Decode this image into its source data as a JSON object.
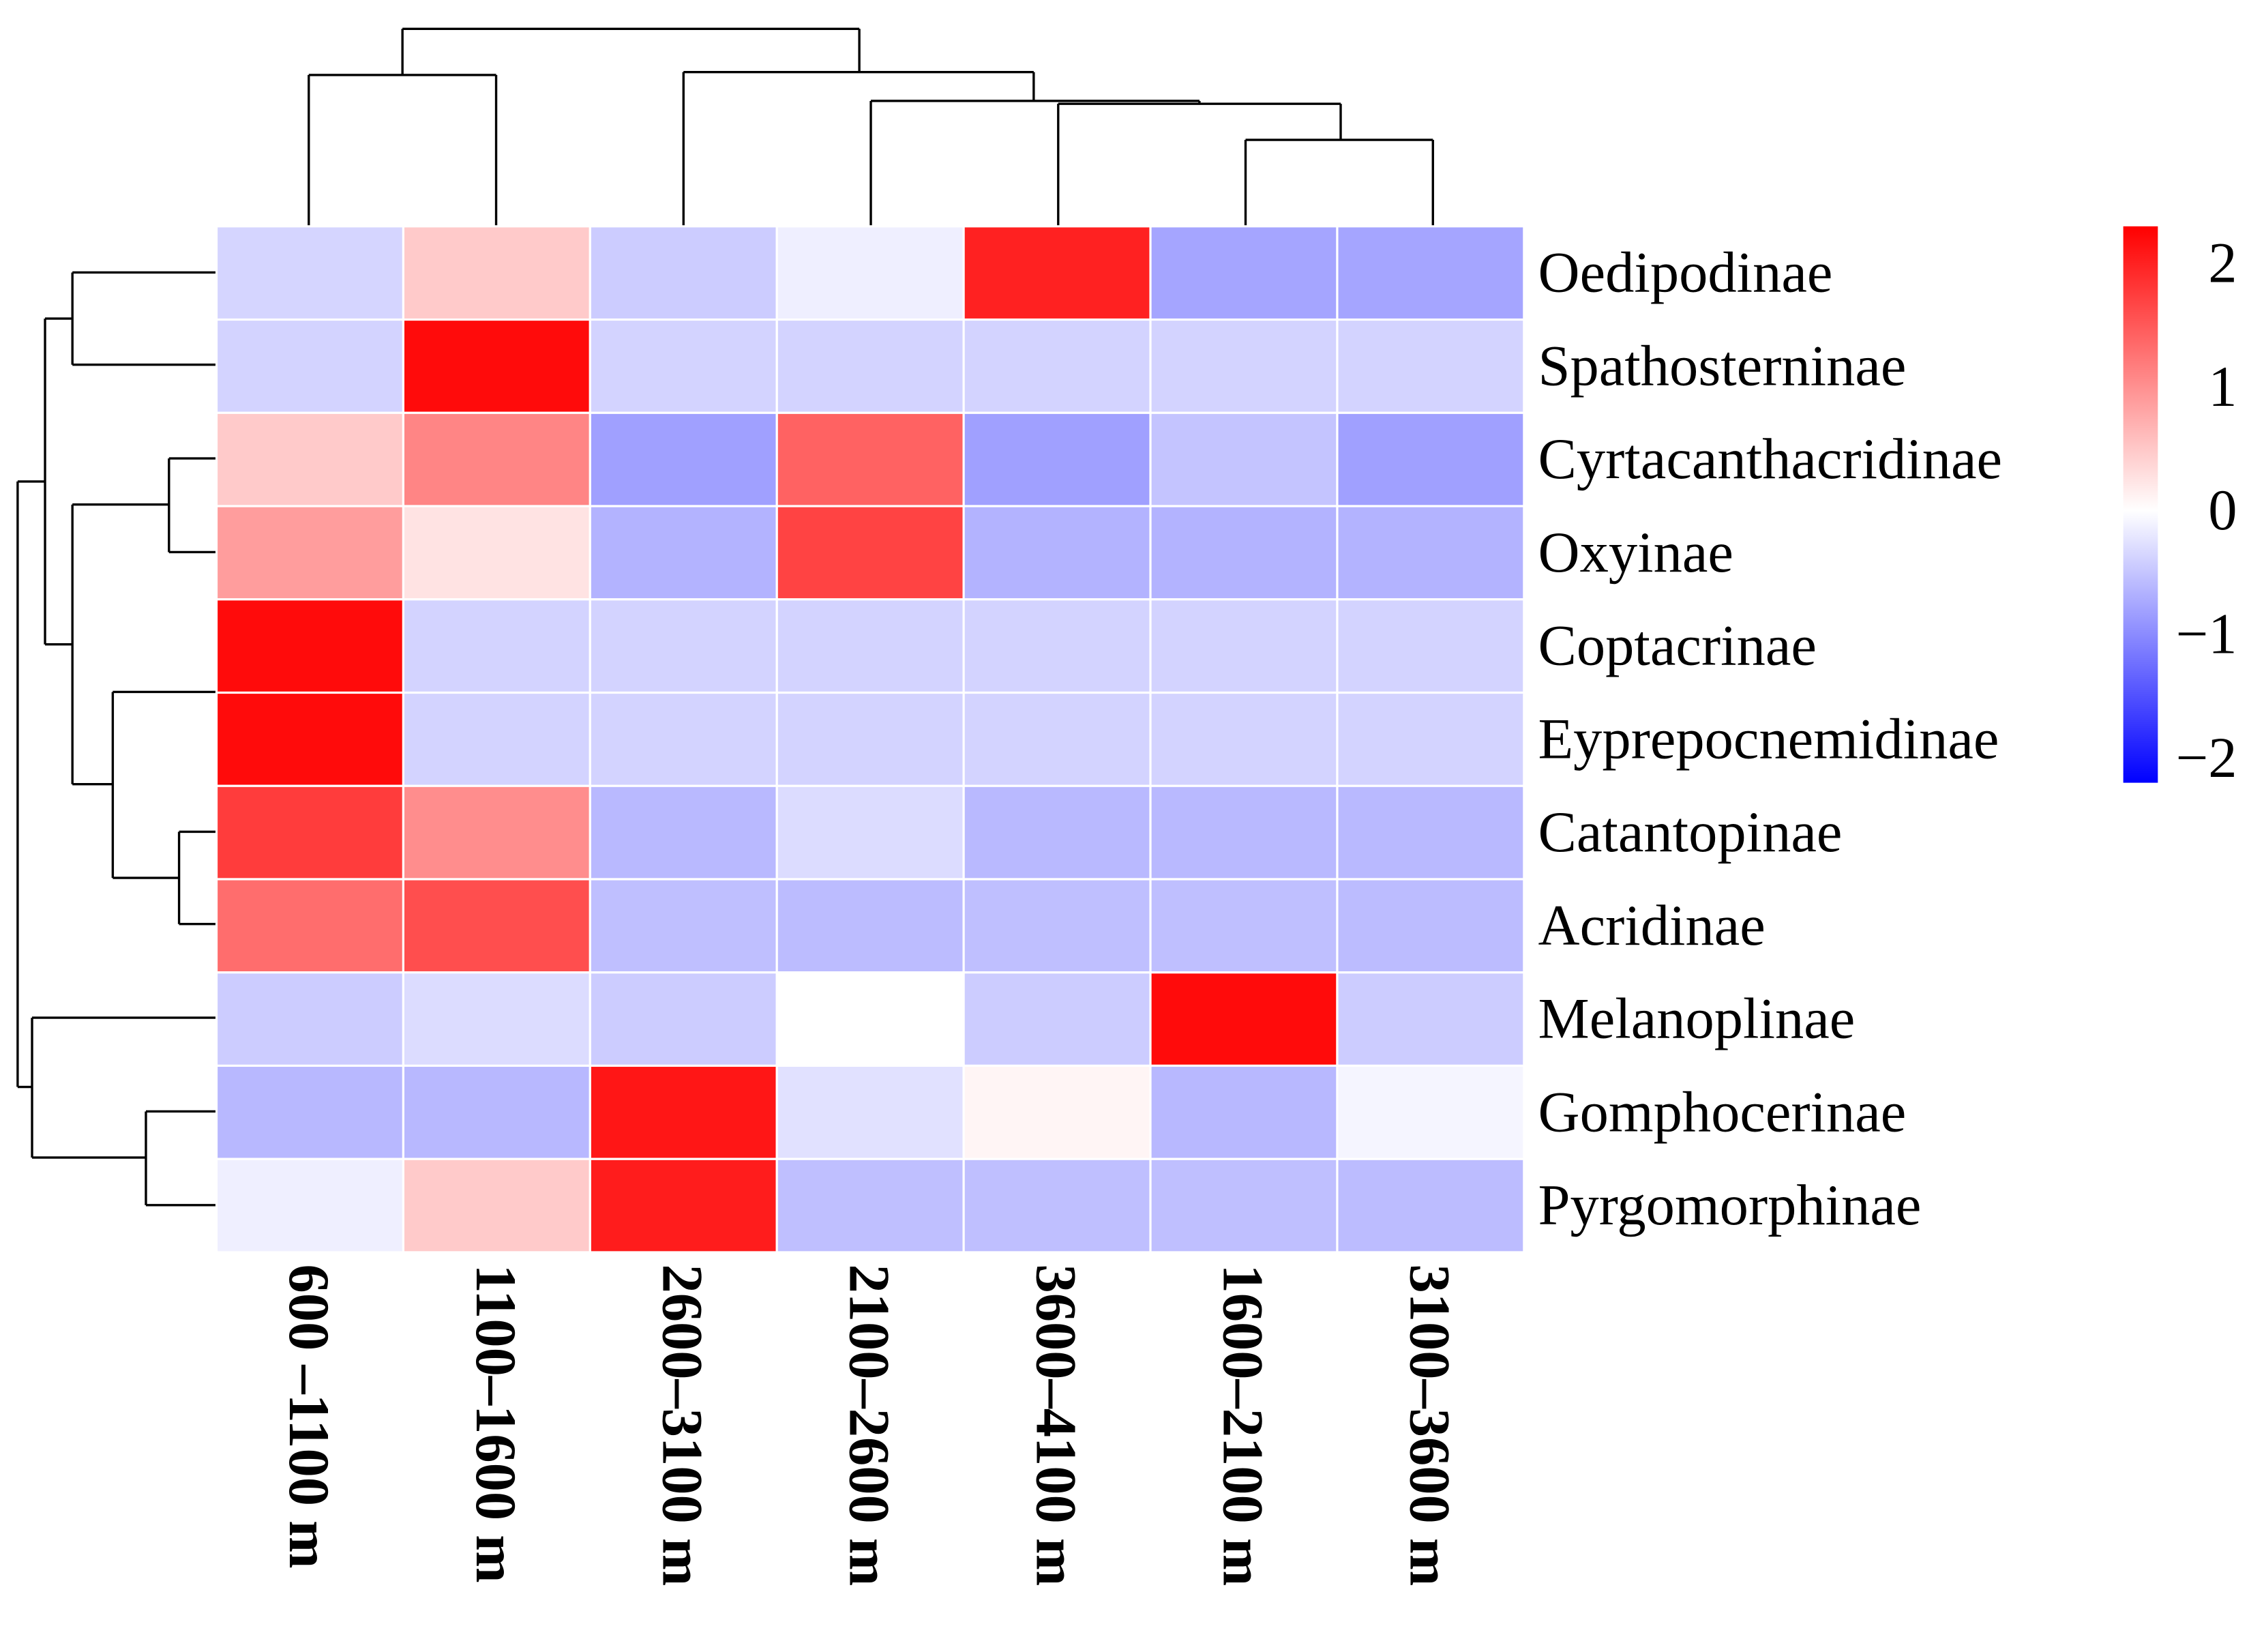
{
  "chart_data": {
    "type": "heatmap",
    "title": "",
    "columns": [
      "600 –1100 m",
      "1100–1600 m",
      "2600–3100 m",
      "2100–2600 m",
      "3600–4100 m",
      "1600–2100 m",
      "3100–3600 m"
    ],
    "rows": [
      "Oedipodinae",
      "Spathosterninae",
      "Cyrtacanthacridinae",
      "Oxyinae",
      "Coptacrinae",
      "Eyprepocnemidinae",
      "Catantopinae",
      "Acridinae",
      "Melanoplinae",
      "Gomphocerinae",
      "Pyrgomorphinae"
    ],
    "values": [
      [
        -0.36,
        0.48,
        -0.44,
        -0.14,
        2.0,
        -0.78,
        -0.78
      ],
      [
        -0.38,
        2.2,
        -0.38,
        -0.38,
        -0.38,
        -0.38,
        -0.38
      ],
      [
        0.48,
        1.1,
        -0.82,
        1.42,
        -0.82,
        -0.51,
        -0.82
      ],
      [
        0.88,
        0.25,
        -0.66,
        1.7,
        -0.66,
        -0.66,
        -0.66
      ],
      [
        2.2,
        -0.38,
        -0.38,
        -0.38,
        -0.38,
        -0.38,
        -0.38
      ],
      [
        2.2,
        -0.38,
        -0.38,
        -0.38,
        -0.38,
        -0.38,
        -0.38
      ],
      [
        1.76,
        1.03,
        -0.6,
        -0.3,
        -0.6,
        -0.6,
        -0.6
      ],
      [
        1.32,
        1.6,
        -0.55,
        -0.58,
        -0.55,
        -0.55,
        -0.58
      ],
      [
        -0.44,
        -0.3,
        -0.44,
        0.0,
        -0.44,
        2.2,
        -0.44
      ],
      [
        -0.61,
        -0.61,
        2.1,
        -0.26,
        0.09,
        -0.61,
        -0.09
      ],
      [
        -0.14,
        0.48,
        2.05,
        -0.55,
        -0.55,
        -0.55,
        -0.58
      ]
    ],
    "colorbar": {
      "range": [
        -2.2,
        2.3
      ],
      "ticks": [
        2,
        1,
        0,
        -1,
        -2
      ],
      "tick_labels": [
        "2",
        "1",
        "0",
        "−1",
        "−2"
      ],
      "colors": {
        "high": "#ff0000",
        "mid": "#ffffff",
        "low": "#0000ff"
      }
    },
    "row_dendrogram": true,
    "column_dendrogram": true
  }
}
